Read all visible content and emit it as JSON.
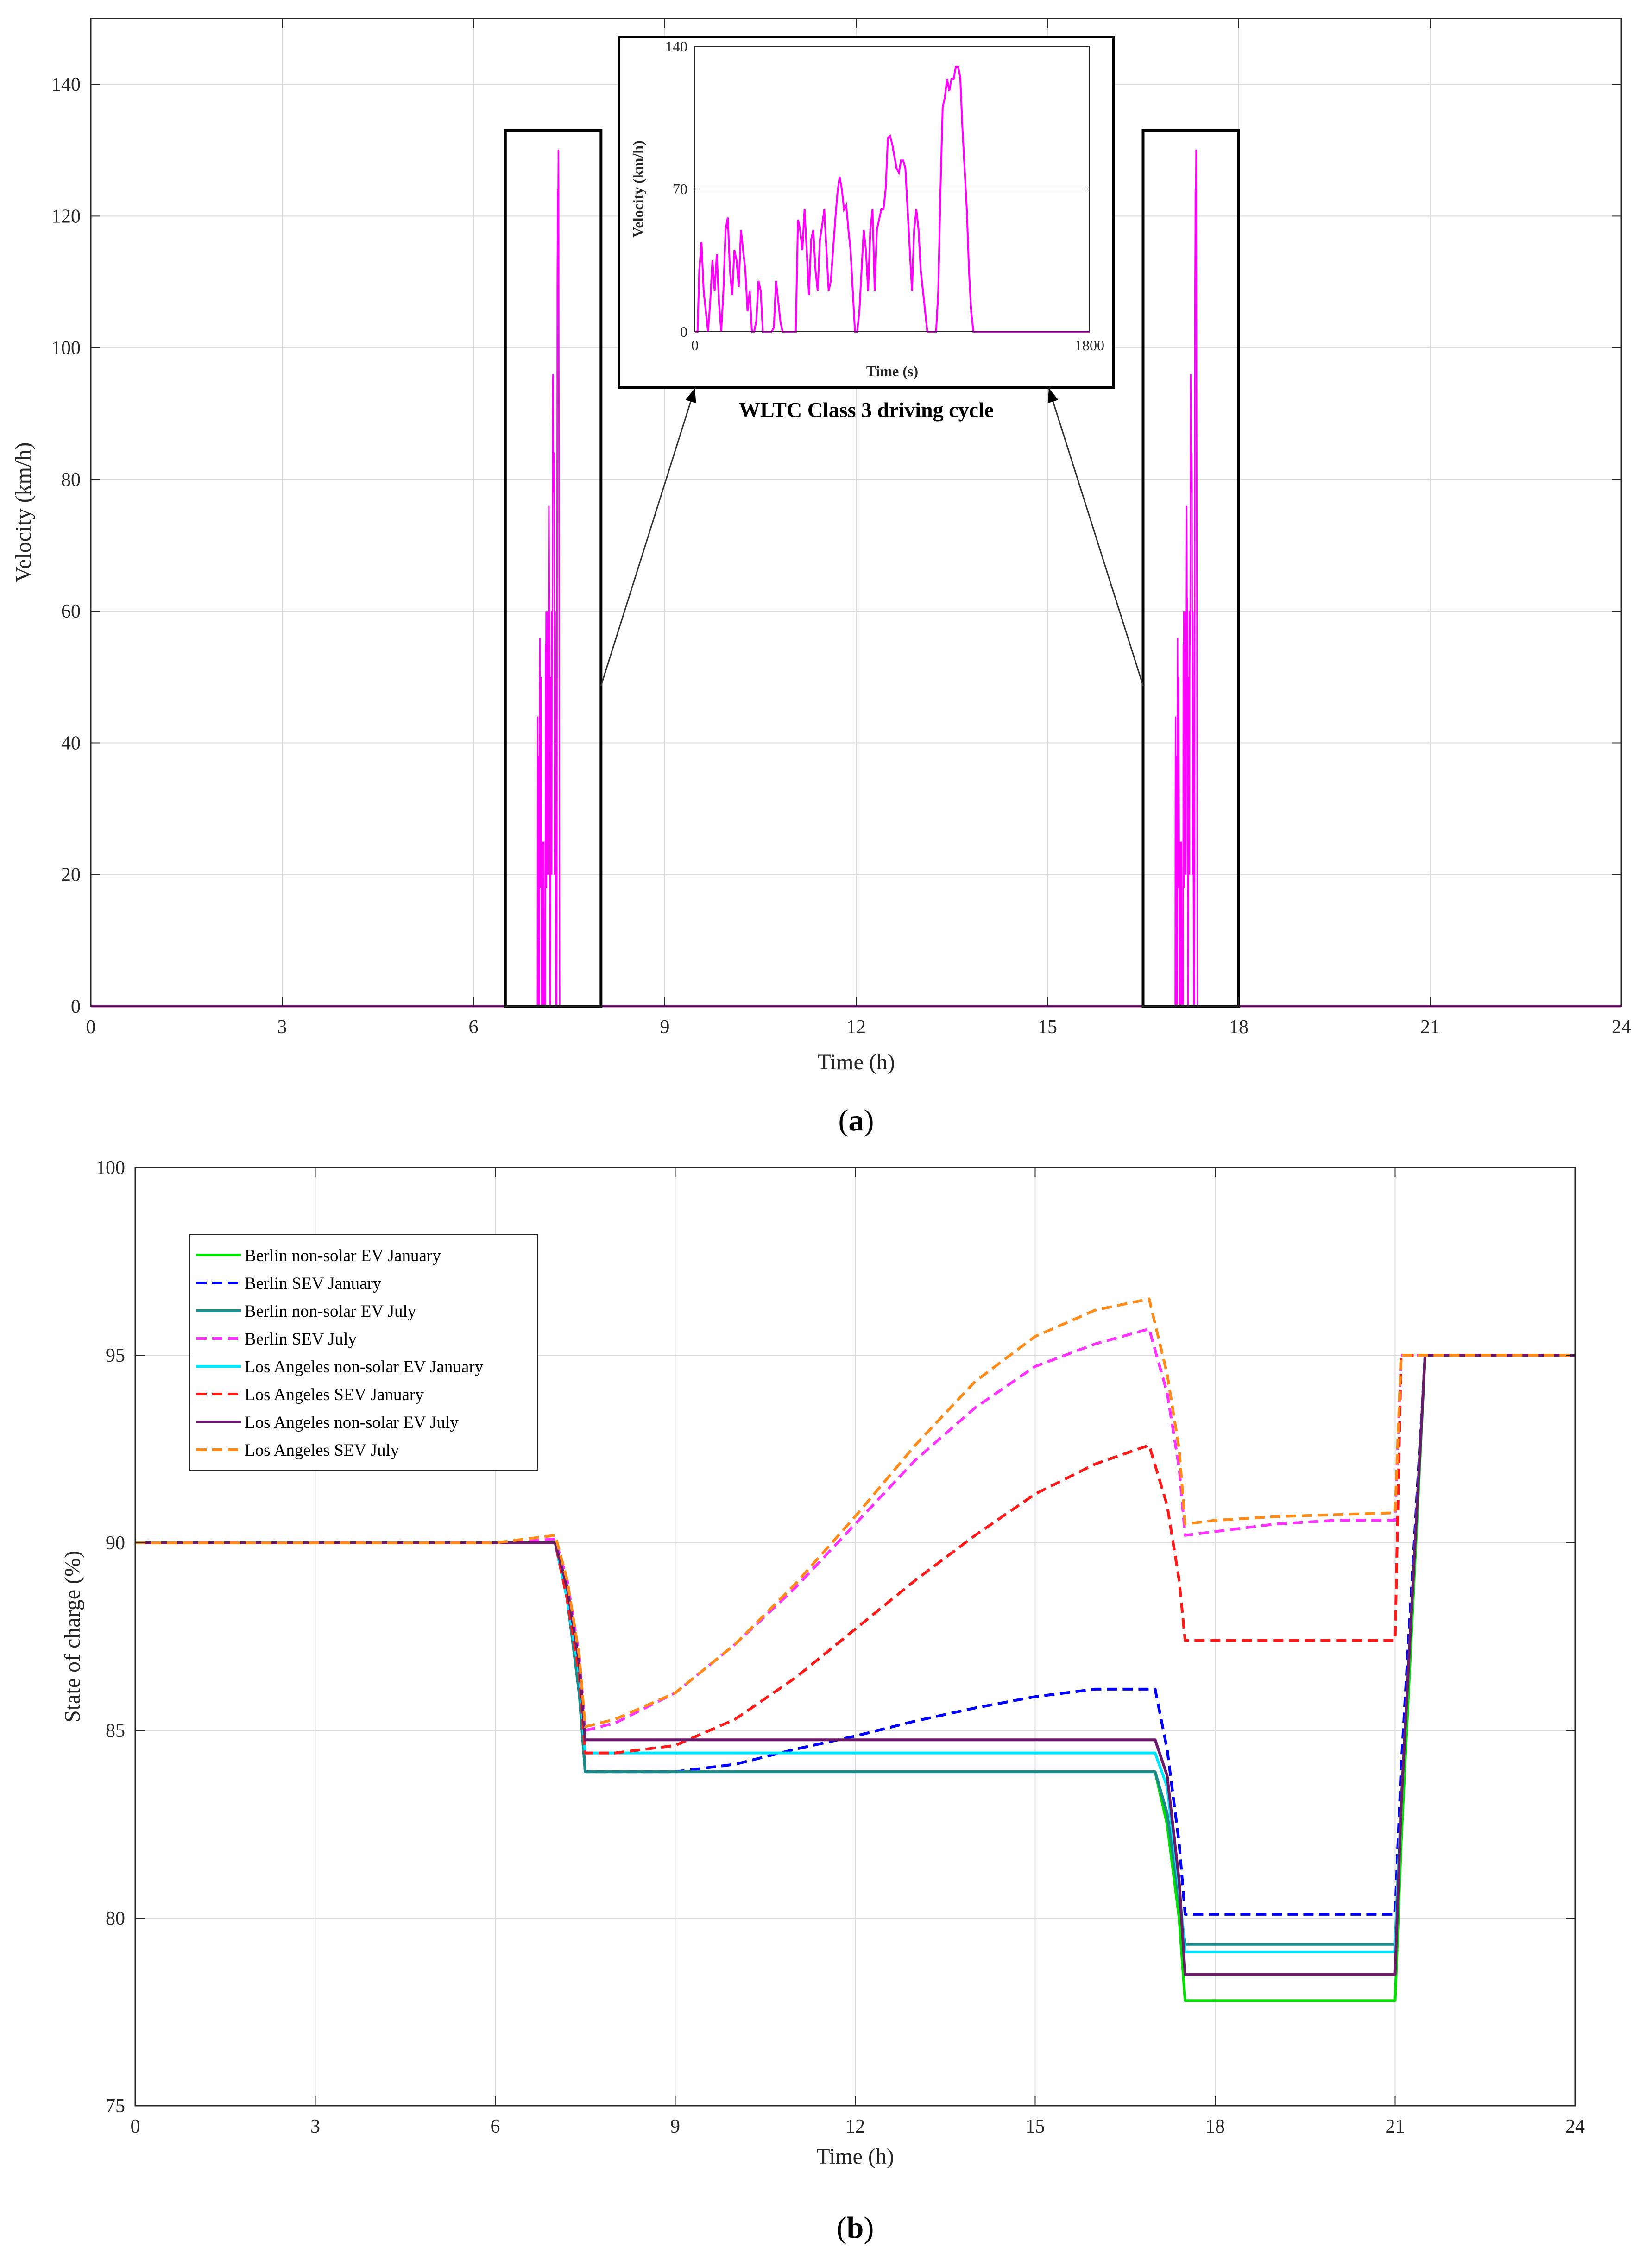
{
  "chart_data": [
    {
      "type": "line",
      "panel": "a",
      "caption_letter": "a",
      "xlabel": "Time (h)",
      "ylabel": "Velocity (km/h)",
      "xlim": [
        0,
        24
      ],
      "ylim": [
        0,
        150
      ],
      "xticks": [
        "0",
        "3",
        "6",
        "9",
        "12",
        "15",
        "18",
        "21",
        "24"
      ],
      "yticks": [
        "0",
        "20",
        "40",
        "60",
        "80",
        "100",
        "120",
        "140"
      ],
      "grid": true,
      "line_color": "#ff00ff",
      "driving_windows": [
        {
          "start": 7.0,
          "end": 7.5
        },
        {
          "start": 17.0,
          "end": 17.5
        }
      ],
      "highlight_boxes": [
        {
          "x": [
            6.5,
            8.0
          ],
          "y": [
            0,
            133
          ]
        },
        {
          "x": [
            16.5,
            18.0
          ],
          "y": [
            0,
            133
          ]
        }
      ],
      "inset": {
        "title": "WLTC Class 3 driving cycle",
        "xlabel": "Time (s)",
        "ylabel": "Velocity (km/h)",
        "xlim": [
          0,
          1800
        ],
        "ylim": [
          0,
          140
        ],
        "xticks": [
          "0",
          "1800"
        ],
        "yticks": [
          "0",
          "70",
          "140"
        ],
        "wltc_profile": {
          "t": [
            0,
            12,
            20,
            30,
            40,
            50,
            60,
            70,
            80,
            90,
            100,
            110,
            120,
            130,
            140,
            150,
            160,
            170,
            180,
            190,
            200,
            210,
            220,
            230,
            240,
            250,
            260,
            270,
            280,
            290,
            300,
            310,
            320,
            330,
            340,
            350,
            360,
            370,
            380,
            390,
            400,
            410,
            420,
            430,
            440,
            450,
            460,
            470,
            480,
            490,
            500,
            510,
            520,
            530,
            540,
            550,
            560,
            570,
            580,
            590,
            600,
            610,
            620,
            630,
            640,
            650,
            660,
            670,
            680,
            690,
            700,
            710,
            720,
            730,
            740,
            750,
            760,
            770,
            780,
            790,
            800,
            810,
            820,
            830,
            840,
            850,
            860,
            870,
            880,
            890,
            900,
            910,
            920,
            930,
            940,
            950,
            960,
            970,
            980,
            990,
            1000,
            1010,
            1020,
            1030,
            1040,
            1050,
            1060,
            1070,
            1080,
            1090,
            1100,
            1110,
            1120,
            1130,
            1140,
            1150,
            1160,
            1170,
            1180,
            1190,
            1200,
            1210,
            1220,
            1230,
            1240,
            1250,
            1260,
            1270,
            1280,
            1290,
            1300,
            1310,
            1320,
            1330,
            1340,
            1350,
            1360,
            1370,
            1380,
            1390,
            1400,
            1410,
            1420,
            1430,
            1440,
            1450,
            1460,
            1470,
            1480,
            1490,
            1500,
            1510,
            1520,
            1530,
            1540,
            1550,
            1560,
            1570,
            1580,
            1590,
            1600,
            1610,
            1620,
            1630,
            1640,
            1650,
            1660,
            1670,
            1680,
            1690,
            1700,
            1710,
            1720,
            1730,
            1740,
            1750,
            1760,
            1770,
            1780,
            1790,
            1800
          ],
          "v": [
            0,
            0,
            30,
            44,
            20,
            10,
            0,
            15,
            35,
            20,
            38,
            14,
            0,
            20,
            50,
            56,
            30,
            18,
            40,
            35,
            22,
            50,
            40,
            30,
            10,
            20,
            0,
            0,
            5,
            25,
            20,
            0,
            0,
            0,
            0,
            0,
            2,
            25,
            15,
            5,
            0,
            0,
            0,
            0,
            0,
            0,
            0,
            55,
            50,
            40,
            60,
            40,
            18,
            45,
            50,
            30,
            20,
            45,
            52,
            60,
            40,
            20,
            25,
            40,
            55,
            68,
            76,
            70,
            60,
            62,
            50,
            40,
            20,
            0,
            0,
            10,
            30,
            50,
            40,
            20,
            50,
            60,
            20,
            50,
            55,
            60,
            60,
            70,
            95,
            96,
            92,
            86,
            80,
            78,
            84,
            84,
            80,
            60,
            40,
            20,
            50,
            60,
            50,
            30,
            20,
            10,
            0,
            0,
            0,
            0,
            0,
            20,
            70,
            110,
            115,
            124,
            118,
            124,
            124,
            130,
            130,
            125,
            100,
            80,
            60,
            30,
            10,
            0,
            0,
            0,
            0,
            0,
            0,
            0,
            0,
            0,
            0,
            0,
            0,
            0,
            0,
            0,
            0,
            0,
            0,
            0,
            0,
            0,
            0,
            0,
            0,
            0,
            0,
            0,
            0,
            0,
            0,
            0,
            0,
            0,
            0,
            0,
            0,
            0,
            0,
            0,
            0,
            0,
            0,
            0,
            0,
            0,
            0,
            0,
            0,
            0,
            0,
            0,
            0,
            0,
            0
          ]
        }
      }
    },
    {
      "type": "line",
      "panel": "b",
      "caption_letter": "b",
      "xlabel": "Time (h)",
      "ylabel": "State of charge (%)",
      "xlim": [
        0,
        24
      ],
      "ylim": [
        75,
        100
      ],
      "xticks": [
        "0",
        "3",
        "6",
        "9",
        "12",
        "15",
        "18",
        "21",
        "24"
      ],
      "yticks": [
        "75",
        "80",
        "85",
        "90",
        "95",
        "100"
      ],
      "grid": true,
      "legend_position": "top-left",
      "series": [
        {
          "name": "Berlin non-solar EV January",
          "color": "#00e000",
          "dash": "solid",
          "x": [
            0,
            7.0,
            7.2,
            7.4,
            7.5,
            16.9,
            17.0,
            17.2,
            17.4,
            17.5,
            21.0,
            21.1,
            21.5,
            24
          ],
          "y": [
            90,
            90,
            88.5,
            86,
            83.9,
            83.9,
            83.9,
            82.5,
            80,
            77.8,
            77.8,
            82,
            95,
            95
          ]
        },
        {
          "name": "Berlin SEV January",
          "color": "#0000ff",
          "dash": "dashed",
          "x": [
            0,
            7.0,
            7.2,
            7.4,
            7.5,
            8.0,
            9.0,
            10.0,
            11.0,
            12.0,
            13.0,
            14.0,
            15.0,
            16.0,
            17.0,
            17.2,
            17.4,
            17.5,
            21.0,
            21.1,
            21.5,
            24
          ],
          "y": [
            90,
            90,
            88.5,
            86,
            83.9,
            83.9,
            83.9,
            84.1,
            84.5,
            84.85,
            85.25,
            85.6,
            85.9,
            86.1,
            86.1,
            84.5,
            82,
            80.1,
            80.1,
            84,
            95,
            95
          ]
        },
        {
          "name": "Berlin non-solar EV July",
          "color": "#1a8a8a",
          "dash": "solid",
          "x": [
            0,
            7.0,
            7.2,
            7.4,
            7.5,
            17.0,
            17.2,
            17.4,
            17.5,
            21.0,
            21.1,
            21.5,
            24
          ],
          "y": [
            90,
            90,
            88.5,
            86,
            83.9,
            83.9,
            82.8,
            80.5,
            79.3,
            79.3,
            83,
            95,
            95
          ]
        },
        {
          "name": "Berlin SEV July",
          "color": "#ff33ff",
          "dash": "dashed",
          "x": [
            0,
            6.0,
            7.0,
            7.2,
            7.4,
            7.5,
            8.0,
            9.0,
            10.0,
            11.0,
            12.0,
            13.0,
            14.0,
            15.0,
            16.0,
            16.9,
            17.2,
            17.4,
            17.5,
            18.0,
            19.0,
            20.0,
            21.0,
            21.1,
            24
          ],
          "y": [
            90,
            90,
            90.1,
            89,
            87,
            85.0,
            85.2,
            86.0,
            87.3,
            88.8,
            90.5,
            92.2,
            93.6,
            94.7,
            95.3,
            95.7,
            94.0,
            92.0,
            90.2,
            90.3,
            90.5,
            90.6,
            90.6,
            95,
            95
          ]
        },
        {
          "name": "Los Angeles non-solar EV January",
          "color": "#00e5ff",
          "dash": "solid",
          "x": [
            0,
            7.0,
            7.2,
            7.4,
            7.5,
            17.0,
            17.2,
            17.4,
            17.5,
            21.0,
            21.1,
            21.5,
            24
          ],
          "y": [
            90,
            90,
            88.5,
            86.5,
            84.4,
            84.4,
            83.5,
            80.8,
            79.1,
            79.1,
            83,
            95,
            95
          ]
        },
        {
          "name": "Los Angeles SEV January",
          "color": "#ff1a1a",
          "dash": "dashed",
          "x": [
            0,
            7.0,
            7.2,
            7.4,
            7.5,
            8.0,
            9.0,
            10.0,
            11.0,
            12.0,
            13.0,
            14.0,
            15.0,
            16.0,
            16.9,
            17.2,
            17.4,
            17.5,
            21.0,
            21.1,
            24
          ],
          "y": [
            90,
            90,
            88.5,
            86.5,
            84.4,
            84.4,
            84.6,
            85.3,
            86.4,
            87.7,
            89.0,
            90.2,
            91.3,
            92.1,
            92.6,
            91.0,
            89.0,
            87.4,
            87.4,
            95,
            95
          ]
        },
        {
          "name": "Los Angeles non-solar EV July",
          "color": "#6a1b6a",
          "dash": "solid",
          "x": [
            0,
            7.0,
            7.2,
            7.4,
            7.5,
            17.0,
            17.2,
            17.4,
            17.5,
            21.0,
            21.1,
            21.5,
            24
          ],
          "y": [
            90,
            90,
            88.8,
            86.8,
            84.75,
            84.75,
            83.8,
            81.0,
            78.5,
            78.5,
            83,
            95,
            95
          ]
        },
        {
          "name": "Los Angeles SEV July",
          "color": "#ff8c1a",
          "dash": "dashed",
          "x": [
            0,
            6.0,
            7.0,
            7.2,
            7.4,
            7.5,
            8.0,
            9.0,
            10.0,
            11.0,
            12.0,
            13.0,
            14.0,
            15.0,
            16.0,
            16.9,
            17.2,
            17.4,
            17.5,
            18.0,
            19.0,
            20.0,
            21.0,
            21.1,
            24
          ],
          "y": [
            90,
            90,
            90.2,
            89,
            87,
            85.1,
            85.3,
            86.0,
            87.3,
            88.9,
            90.7,
            92.6,
            94.3,
            95.5,
            96.2,
            96.5,
            94.5,
            92.5,
            90.5,
            90.6,
            90.7,
            90.75,
            90.8,
            95,
            95
          ]
        }
      ]
    }
  ],
  "colors": {
    "axis": "#262626",
    "grid": "#dcdcdc",
    "box": "#000000"
  }
}
